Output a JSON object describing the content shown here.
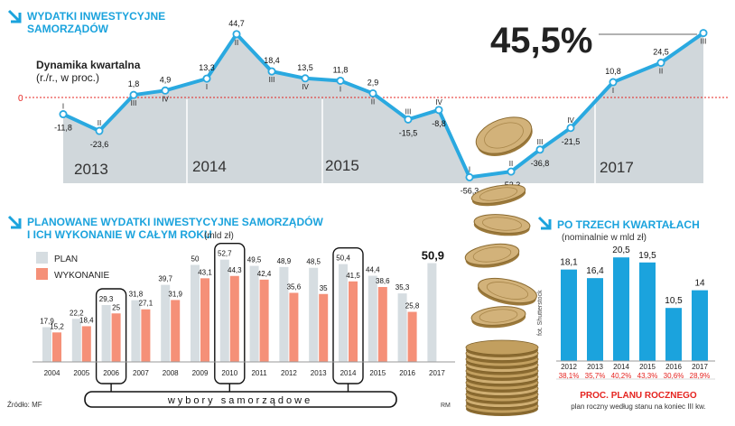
{
  "top": {
    "title_line1": "WYDATKI INWESTYCYJNE",
    "title_line2": "SAMORZĄDÓW",
    "subtitle_line1": "Dynamika kwartalna",
    "subtitle_line2": "(r./r., w proc.)",
    "zero_label": "0",
    "highlight_value": "45,5%"
  },
  "bottom_left": {
    "title_line1": "PLANOWANE WYDATKI INWESTYCYJNE SAMORZĄDÓW",
    "title_line2": "I ICH WYKONANIE W CAŁYM ROKU",
    "unit": "(mld zł)",
    "legend_plan": "PLAN",
    "legend_exec": "WYKONANIE",
    "election_label": "wybory samorządowe",
    "source": "Źródło: MF",
    "credit": "RM"
  },
  "bottom_right": {
    "title": "PO TRZECH KWARTAŁACH",
    "subtitle": "(nominalnie w mld zł)",
    "footer_title": "PROC. PLANU ROCZNEGO",
    "footer_sub": "plan roczny według stanu na koniec III kw."
  },
  "photo_credit": "fot. Shutterstock",
  "colors": {
    "accent": "#1ba3dd",
    "plan": "#d6dde1",
    "exec": "#f59078",
    "line": "#2aa9e0",
    "area": "#bcc6cc",
    "percent_red": "#e52420",
    "zero_line": "#e52420"
  },
  "chart_data": [
    {
      "type": "line",
      "title": "WYDATKI INWESTYCYJNE SAMORZĄDÓW",
      "subtitle": "Dynamika kwartalna (r./r., w proc.)",
      "year_labels": [
        "2013",
        "2014",
        "2015",
        "2017"
      ],
      "categories": [
        "I 2013",
        "II 2013",
        "III 2013",
        "IV 2013",
        "I 2014",
        "II 2014",
        "III 2014",
        "IV 2014",
        "I 2015",
        "II 2015",
        "III 2015",
        "IV 2015",
        "I 2016",
        "II 2016",
        "III 2016",
        "IV 2016",
        "I 2017",
        "II 2017",
        "III 2017"
      ],
      "quarter_labels": [
        "I",
        "II",
        "III",
        "IV",
        "I",
        "II",
        "III",
        "IV",
        "I",
        "II",
        "III",
        "IV",
        "I",
        "II",
        "III",
        "IV",
        "I",
        "II",
        "III"
      ],
      "values": [
        -11.8,
        -23.6,
        1.8,
        4.9,
        13.3,
        44.7,
        18.4,
        13.5,
        11.8,
        2.9,
        -15.5,
        -8.8,
        -56.3,
        -52.3,
        -36.8,
        -21.5,
        10.8,
        24.5,
        45.5
      ],
      "value_labels": [
        "-11,8",
        "-23,6",
        "1,8",
        "4,9",
        "13,3",
        "44,7",
        "18,4",
        "13,5",
        "11,8",
        "2,9",
        "-15,5",
        "-8,8",
        "-56,3",
        "-52,3",
        "-36,8",
        "-21,5",
        "10,8",
        "24,5",
        ""
      ]
    },
    {
      "type": "bar",
      "title": "PLANOWANE WYDATKI INWESTYCYJNE SAMORZĄDÓW I ICH WYKONANIE W CAŁYM ROKU",
      "unit": "mld zł",
      "categories": [
        "2004",
        "2005",
        "2006",
        "2007",
        "2008",
        "2009",
        "2010",
        "2011",
        "2012",
        "2013",
        "2014",
        "2015",
        "2016",
        "2017"
      ],
      "highlighted": [
        "2006",
        "2010",
        "2014"
      ],
      "series": [
        {
          "name": "PLAN",
          "values": [
            17.9,
            22.2,
            29.3,
            31.8,
            39.7,
            50,
            52.7,
            49.5,
            48.9,
            48.5,
            50.4,
            44.4,
            35.3,
            50.9
          ],
          "labels": [
            "17,9",
            "22,2",
            "29,3",
            "31,8",
            "39,7",
            "50",
            "52,7",
            "49,5",
            "48,9",
            "48,5",
            "50,4",
            "44,4",
            "35,3",
            "50,9"
          ]
        },
        {
          "name": "WYKONANIE",
          "values": [
            15.2,
            18.4,
            25,
            27.1,
            31.9,
            43.1,
            44.3,
            42.4,
            35.6,
            35,
            41.5,
            38.6,
            25.8,
            null
          ],
          "labels": [
            "15,2",
            "18,4",
            "25",
            "27,1",
            "31,9",
            "43,1",
            "44,3",
            "42,4",
            "35,6",
            "35",
            "41,5",
            "38,6",
            "25,8",
            ""
          ]
        }
      ]
    },
    {
      "type": "bar",
      "title": "PO TRZECH KWARTAŁACH",
      "subtitle": "(nominalnie w mld zł)",
      "categories": [
        "2012",
        "2013",
        "2014",
        "2015",
        "2016",
        "2017"
      ],
      "values": [
        18.1,
        16.4,
        20.5,
        19.5,
        10.5,
        14
      ],
      "value_labels": [
        "18,1",
        "16,4",
        "20,5",
        "19,5",
        "10,5",
        "14"
      ],
      "percent_of_plan": [
        "38,1%",
        "35,7%",
        "40,2%",
        "43,3%",
        "30,6%",
        "28,9%"
      ]
    }
  ]
}
